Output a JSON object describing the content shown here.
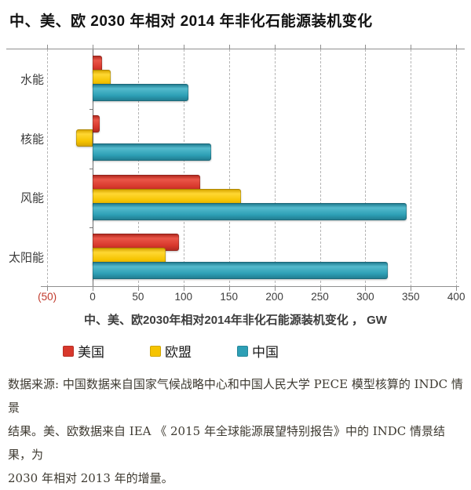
{
  "title": "中、美、欧 2030 年相对 2014 年非化石能源装机变化",
  "chart_data": {
    "type": "bar",
    "orientation": "horizontal",
    "title": "中、美、欧 2030 年相对 2014 年非化石能源装机变化",
    "xlabel": "中、美、欧2030年相对2014年非化石能源装机变化 ，  GW",
    "unit": "GW",
    "categories": [
      "水能",
      "核能",
      "风能",
      "太阳能"
    ],
    "series": [
      {
        "name": "美国",
        "values": [
          10,
          8,
          118,
          95
        ],
        "color_base": "#d8382c",
        "color_light": "#ea5648",
        "color_dark": "#b42b21"
      },
      {
        "name": "欧盟",
        "values": [
          20,
          -18,
          163,
          80
        ],
        "color_base": "#f6c400",
        "color_light": "#ffd733",
        "color_dark": "#d9a700"
      },
      {
        "name": "中国",
        "values": [
          105,
          130,
          345,
          325
        ],
        "color_base": "#2d9fb5",
        "color_light": "#54bacd",
        "color_dark": "#227e92"
      }
    ],
    "xlim": [
      -50,
      400
    ],
    "x_ticks": [
      -50,
      0,
      50,
      100,
      150,
      200,
      250,
      300,
      350,
      400
    ],
    "x_tick_labels": [
      "(50)",
      "0",
      "50",
      "100",
      "150",
      "200",
      "250",
      "300",
      "350",
      "400"
    ],
    "negative_label_color": "#c0392b",
    "grid": "vertical-dashed",
    "legend_position": "bottom-left"
  },
  "legend": {
    "items": [
      {
        "label": "美国",
        "color": "#d8382c"
      },
      {
        "label": "欧盟",
        "color": "#f6c400"
      },
      {
        "label": "中国",
        "color": "#2d9fb5"
      }
    ]
  },
  "footnote": {
    "lines": [
      "数据来源: 中国数据来自国家气候战略中心和中国人民大学 PECE 模型核算的 INDC 情景",
      "结果。美、欧数据来自 IEA 《 2015 年全球能源展望特别报告》中的 INDC 情景结果，为",
      "2030 年相对 2013 年的增量。"
    ]
  }
}
